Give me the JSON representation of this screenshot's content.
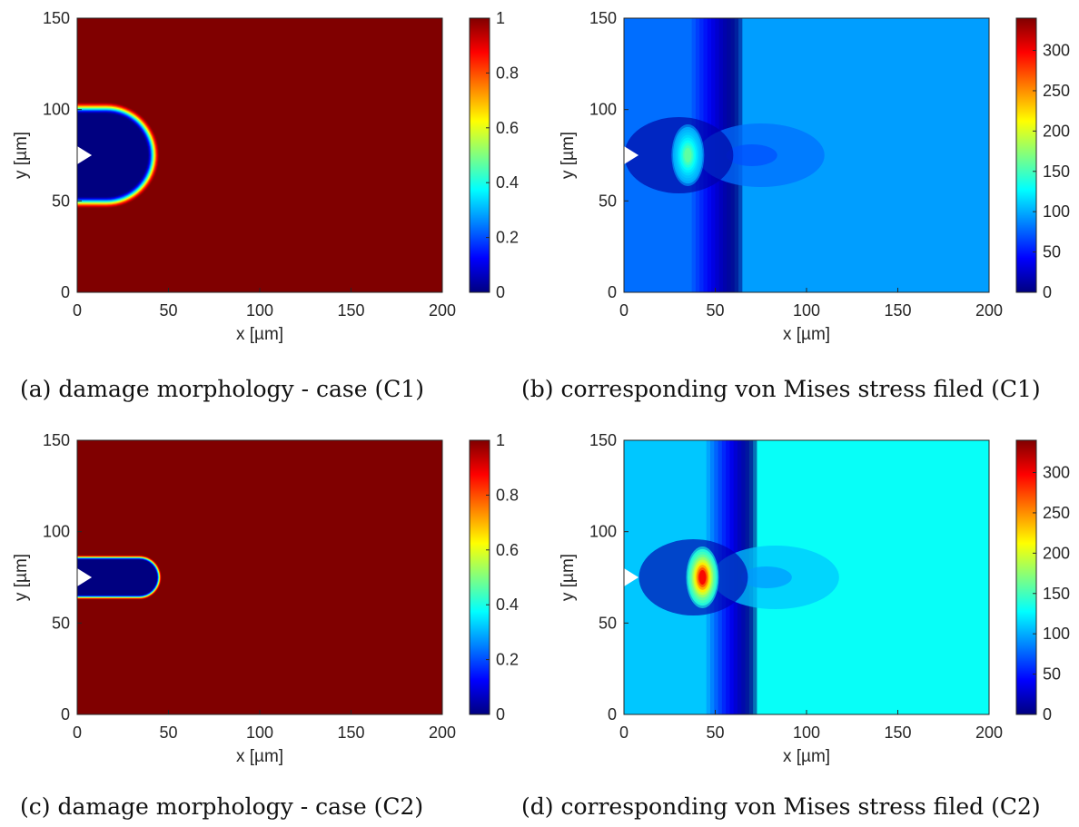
{
  "chart_data": [
    {
      "type": "heatmap",
      "panel": "a",
      "field": "damage",
      "caption": "(a) damage morphology - case (C1)",
      "xlabel": "x [µm]",
      "ylabel": "y [µm]",
      "xlim": [
        0,
        200
      ],
      "ylim": [
        0,
        150
      ],
      "xticks": [
        "0",
        "50",
        "100",
        "150",
        "200"
      ],
      "yticks": [
        "0",
        "50",
        "100",
        "150"
      ],
      "colorbar": {
        "range": [
          0,
          1
        ],
        "ticks": [
          "0",
          "0.2",
          "0.4",
          "0.6",
          "0.8",
          "1"
        ],
        "colormap": "jet"
      },
      "background_value": 1,
      "crack": {
        "notch_tip_x": 8,
        "center_y": 75,
        "tip_x": 35,
        "half_width": 19,
        "min_value": 0
      }
    },
    {
      "type": "heatmap",
      "panel": "b",
      "field": "von_mises_stress",
      "caption": "(b) corresponding von Mises stress filed (C1)",
      "xlabel": "x [µm]",
      "ylabel": "y [µm]",
      "xlim": [
        0,
        200
      ],
      "ylim": [
        0,
        150
      ],
      "xticks": [
        "0",
        "50",
        "100",
        "150",
        "200"
      ],
      "yticks": [
        "0",
        "50",
        "100",
        "150"
      ],
      "colorbar": {
        "range": [
          0,
          340
        ],
        "ticks": [
          "0",
          "50",
          "100",
          "150",
          "200",
          "250",
          "300"
        ],
        "colormap": "jet"
      },
      "far_field_value": 95,
      "hotspot": {
        "x": 35,
        "y": 75,
        "peak_value": 160
      }
    },
    {
      "type": "heatmap",
      "panel": "c",
      "field": "damage",
      "caption": "(c) damage morphology - case (C2)",
      "xlabel": "x [µm]",
      "ylabel": "y [µm]",
      "xlim": [
        0,
        200
      ],
      "ylim": [
        0,
        150
      ],
      "xticks": [
        "0",
        "50",
        "100",
        "150",
        "200"
      ],
      "yticks": [
        "0",
        "50",
        "100",
        "150"
      ],
      "colorbar": {
        "range": [
          0,
          1
        ],
        "ticks": [
          "0",
          "0.2",
          "0.4",
          "0.6",
          "0.8",
          "1"
        ],
        "colormap": "jet"
      },
      "background_value": 1,
      "crack": {
        "notch_tip_x": 8,
        "center_y": 75,
        "tip_x": 42,
        "half_width": 8,
        "min_value": 0
      }
    },
    {
      "type": "heatmap",
      "panel": "d",
      "field": "von_mises_stress",
      "caption": "(d) corresponding von Mises stress filed (C2)",
      "xlabel": "x [µm]",
      "ylabel": "y [µm]",
      "xlim": [
        0,
        200
      ],
      "ylim": [
        0,
        150
      ],
      "xticks": [
        "0",
        "50",
        "100",
        "150",
        "200"
      ],
      "yticks": [
        "0",
        "50",
        "100",
        "150"
      ],
      "colorbar": {
        "range": [
          0,
          340
        ],
        "ticks": [
          "0",
          "50",
          "100",
          "150",
          "200",
          "250",
          "300"
        ],
        "colormap": "jet"
      },
      "far_field_value": 130,
      "hotspot": {
        "x": 43,
        "y": 75,
        "peak_value": 300
      }
    }
  ]
}
